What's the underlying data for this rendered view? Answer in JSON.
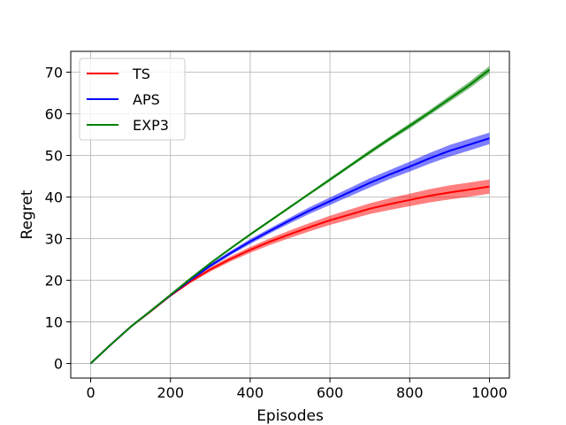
{
  "chart_data": {
    "type": "line",
    "title": "",
    "xlabel": "Episodes",
    "ylabel": "Regret",
    "xlim": [
      -50,
      1050
    ],
    "ylim": [
      -3.5,
      75
    ],
    "xticks": [
      0,
      200,
      400,
      600,
      800,
      1000
    ],
    "yticks": [
      0,
      10,
      20,
      30,
      40,
      50,
      60,
      70
    ],
    "grid": true,
    "legend_position": "top-left",
    "x": [
      0,
      50,
      100,
      150,
      200,
      250,
      300,
      350,
      400,
      450,
      500,
      550,
      600,
      650,
      700,
      750,
      800,
      850,
      900,
      950,
      1000
    ],
    "series": [
      {
        "name": "TS",
        "color": "#ff0000",
        "band_color": "#ff0000",
        "values": [
          0,
          4.5,
          8.8,
          12.5,
          16.3,
          19.7,
          22.6,
          25.1,
          27.3,
          29.3,
          31.1,
          32.8,
          34.4,
          35.8,
          37.2,
          38.3,
          39.3,
          40.3,
          41.1,
          41.8,
          42.5
        ],
        "lower": [
          0,
          4.4,
          8.7,
          12.3,
          16.0,
          19.3,
          22.1,
          24.5,
          26.6,
          28.5,
          30.2,
          31.8,
          33.3,
          34.6,
          35.9,
          36.9,
          37.8,
          38.7,
          39.4,
          40.1,
          40.8
        ],
        "upper": [
          0,
          4.6,
          8.9,
          12.7,
          16.6,
          20.1,
          23.1,
          25.7,
          28.0,
          30.1,
          32.0,
          33.8,
          35.5,
          37.0,
          38.5,
          39.7,
          40.8,
          41.9,
          42.8,
          43.5,
          44.2
        ]
      },
      {
        "name": "APS",
        "color": "#0000ff",
        "band_color": "#0000ff",
        "values": [
          0,
          4.5,
          8.8,
          12.6,
          16.4,
          20.1,
          23.5,
          26.5,
          29.3,
          31.9,
          34.4,
          36.8,
          39.0,
          41.2,
          43.4,
          45.4,
          47.3,
          49.3,
          51.1,
          52.6,
          54.1
        ],
        "lower": [
          0,
          4.4,
          8.7,
          12.4,
          16.2,
          19.8,
          23.1,
          26.0,
          28.7,
          31.3,
          33.7,
          36.0,
          38.1,
          40.2,
          42.3,
          44.3,
          46.1,
          48.0,
          49.7,
          51.2,
          52.7
        ],
        "upper": [
          0,
          4.6,
          8.9,
          12.8,
          16.6,
          20.4,
          23.9,
          27.0,
          29.9,
          32.5,
          35.1,
          37.6,
          39.9,
          42.2,
          44.5,
          46.5,
          48.5,
          50.6,
          52.5,
          54.0,
          55.5
        ]
      },
      {
        "name": "EXP3",
        "color": "#008000",
        "band_color": "#008000",
        "values": [
          0,
          4.5,
          8.8,
          12.6,
          16.5,
          20.4,
          24.1,
          27.6,
          31.0,
          34.3,
          37.6,
          40.9,
          44.2,
          47.5,
          50.8,
          54.0,
          57.1,
          60.3,
          63.6,
          66.9,
          70.6
        ],
        "lower": [
          0,
          4.4,
          8.7,
          12.5,
          16.3,
          20.2,
          23.9,
          27.4,
          30.7,
          34.0,
          37.3,
          40.6,
          43.8,
          47.1,
          50.3,
          53.5,
          56.5,
          59.7,
          62.9,
          66.1,
          69.7
        ],
        "upper": [
          0,
          4.6,
          8.9,
          12.7,
          16.7,
          20.6,
          24.3,
          27.8,
          31.3,
          34.6,
          37.9,
          41.2,
          44.6,
          47.9,
          51.3,
          54.5,
          57.7,
          60.9,
          64.3,
          67.7,
          71.5
        ]
      }
    ]
  }
}
